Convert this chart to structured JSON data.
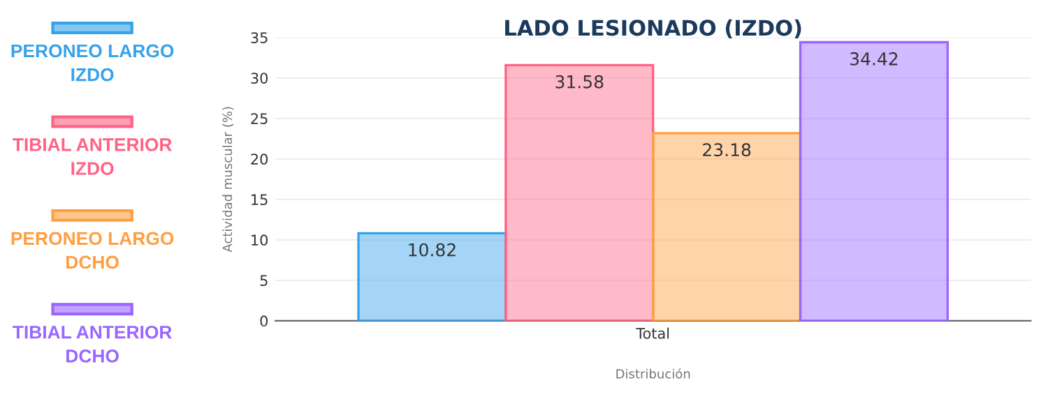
{
  "chart_data": {
    "type": "bar",
    "title": "LADO LESIONADO (IZDO)",
    "xlabel": "Distribución",
    "ylabel": "Actividad muscular (%)",
    "categories": [
      "Total"
    ],
    "series": [
      {
        "name": "PERONEO LARGO IZDO",
        "color": "#36a2eb",
        "values": [
          10.82
        ]
      },
      {
        "name": "TIBIAL ANTERIOR IZDO",
        "color": "#ff6384",
        "values": [
          31.58
        ]
      },
      {
        "name": "PERONEO LARGO DCHO",
        "color": "#ff9f40",
        "values": [
          23.18
        ]
      },
      {
        "name": "TIBIAL ANTERIOR DCHO",
        "color": "#9966ff",
        "values": [
          34.42
        ]
      }
    ],
    "ylim": [
      0,
      35
    ],
    "yticks": [
      0,
      5,
      10,
      15,
      20,
      25,
      30,
      35
    ],
    "grid": "y",
    "legend": "left",
    "data_labels": true
  }
}
